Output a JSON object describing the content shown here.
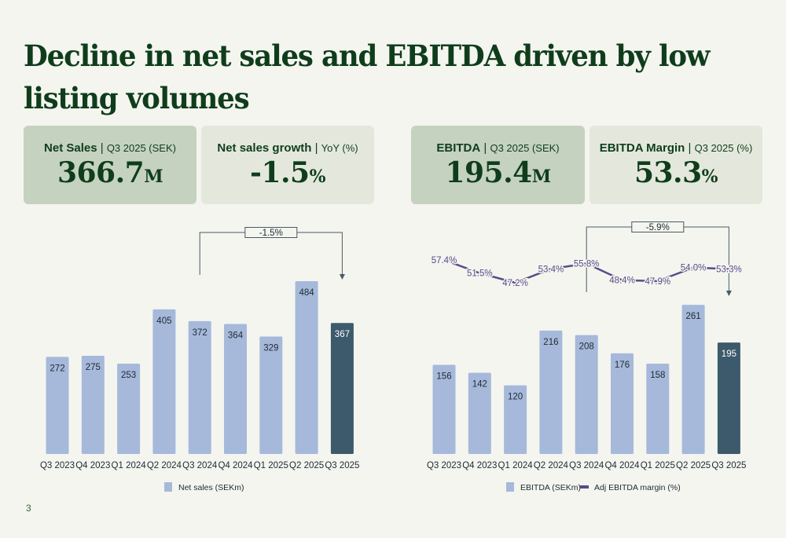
{
  "page": {
    "title": "Decline in net sales and EBITDA driven by low listing volumes",
    "page_number": "3"
  },
  "kpis": [
    {
      "label": "Net Sales",
      "sep": " | ",
      "sub": "Q3 2025 (SEK)",
      "value": "366.7",
      "unit": "M"
    },
    {
      "label": "Net sales growth",
      "sep": " | ",
      "sub": "YoY (%)",
      "value": "-1.5",
      "unit": "%"
    },
    {
      "label": "EBITDA",
      "sep": " | ",
      "sub": "Q3 2025 (SEK)",
      "value": "195.4",
      "unit": "M"
    },
    {
      "label": "EBITDA Margin",
      "sep": " | ",
      "sub": "Q3 2025 (%)",
      "value": "53.3",
      "unit": "%"
    }
  ],
  "colors": {
    "bar": "#a6b9db",
    "bar_highlight": "#3c5a6b",
    "line": "#5b4a8b",
    "title": "#0f3d1c",
    "annotation": "#4a5a66"
  },
  "chart_data": [
    {
      "type": "bar",
      "title": "",
      "categories": [
        "Q3 2023",
        "Q4 2023",
        "Q1 2024",
        "Q2 2024",
        "Q3 2024",
        "Q4 2024",
        "Q1 2025",
        "Q2 2025",
        "Q3 2025"
      ],
      "series": [
        {
          "name": "Net sales (SEKm)",
          "values": [
            272,
            275,
            253,
            405,
            372,
            364,
            329,
            484,
            367
          ]
        }
      ],
      "highlight_index": 8,
      "xlabel": "",
      "ylabel": "",
      "ylim": [
        0,
        520
      ],
      "grid": false,
      "legend": "bottom",
      "annotation": {
        "label": "-1.5%",
        "from": "Q3 2024",
        "to": "Q3 2025"
      }
    },
    {
      "type": "bar+line",
      "title": "",
      "categories": [
        "Q3 2023",
        "Q4 2023",
        "Q1 2024",
        "Q2 2024",
        "Q3 2024",
        "Q4 2024",
        "Q1 2025",
        "Q2 2025",
        "Q3 2025"
      ],
      "series": [
        {
          "name": "EBITDA (SEKm)",
          "type": "bar",
          "values": [
            156,
            142,
            120,
            216,
            208,
            176,
            158,
            261,
            195
          ]
        },
        {
          "name": "Adj EBITDA margin (%)",
          "type": "line",
          "values": [
            57.4,
            51.5,
            47.2,
            53.4,
            55.8,
            48.4,
            47.9,
            54.0,
            53.3
          ],
          "labels": [
            "57.4%",
            "51.5%",
            "47.2%",
            "53.4%",
            "55.8%",
            "48.4%",
            "47.9%",
            "54.0%",
            "53.3%"
          ]
        }
      ],
      "highlight_index": 8,
      "xlabel": "",
      "ylabel": "",
      "ylim": [
        0,
        380
      ],
      "y2lim": [
        30,
        62
      ],
      "grid": false,
      "legend": "bottom",
      "annotation": {
        "label": "-5.9%",
        "from": "Q3 2024",
        "to": "Q3 2025"
      }
    }
  ]
}
